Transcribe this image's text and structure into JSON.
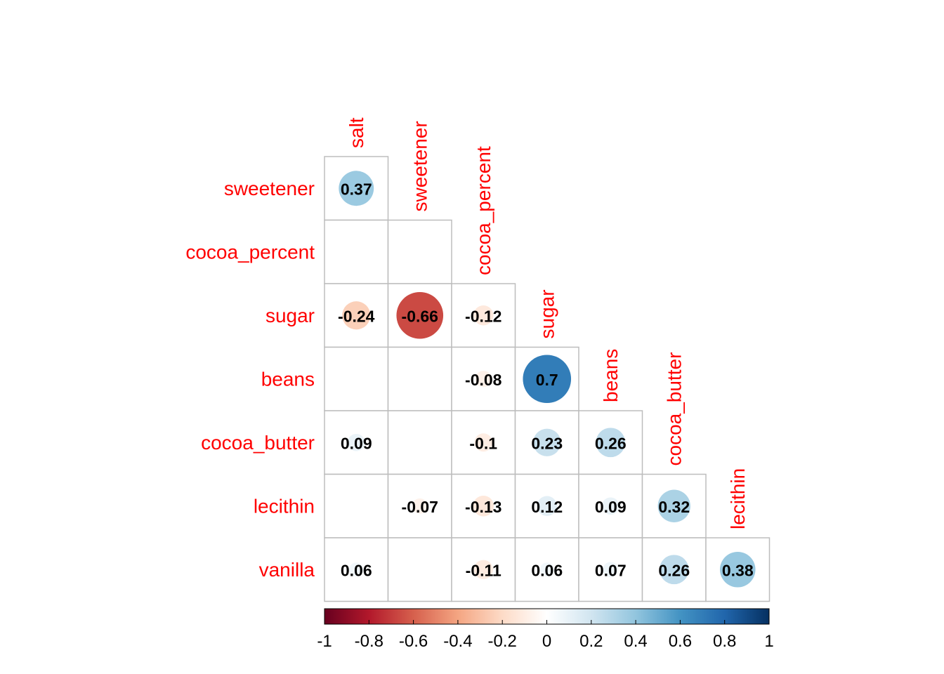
{
  "chart_data": {
    "type": "heatmap",
    "style": "correlation-plot, lower triangle, circle glyphs with coefficient labels",
    "row_labels": [
      "sweetener",
      "cocoa_percent",
      "sugar",
      "beans",
      "cocoa_butter",
      "lecithin",
      "vanilla"
    ],
    "col_labels": [
      "salt",
      "sweetener",
      "cocoa_percent",
      "sugar",
      "beans",
      "cocoa_butter",
      "lecithin"
    ],
    "label_color": "#ff0000",
    "cells": [
      {
        "row": "sweetener",
        "col": "salt",
        "value": 0.37,
        "label": "0.37"
      },
      {
        "row": "sugar",
        "col": "salt",
        "value": -0.24,
        "label": "-0.24"
      },
      {
        "row": "sugar",
        "col": "sweetener",
        "value": -0.66,
        "label": "-0.66"
      },
      {
        "row": "sugar",
        "col": "cocoa_percent",
        "value": -0.12,
        "label": "-0.12"
      },
      {
        "row": "beans",
        "col": "cocoa_percent",
        "value": -0.08,
        "label": "-0.08"
      },
      {
        "row": "beans",
        "col": "sugar",
        "value": 0.7,
        "label": "0.7"
      },
      {
        "row": "cocoa_butter",
        "col": "salt",
        "value": 0.09,
        "label": "0.09"
      },
      {
        "row": "cocoa_butter",
        "col": "cocoa_percent",
        "value": -0.1,
        "label": "-0.1"
      },
      {
        "row": "cocoa_butter",
        "col": "sugar",
        "value": 0.23,
        "label": "0.23"
      },
      {
        "row": "cocoa_butter",
        "col": "beans",
        "value": 0.26,
        "label": "0.26"
      },
      {
        "row": "lecithin",
        "col": "sweetener",
        "value": -0.07,
        "label": "-0.07"
      },
      {
        "row": "lecithin",
        "col": "cocoa_percent",
        "value": -0.13,
        "label": "-0.13"
      },
      {
        "row": "lecithin",
        "col": "sugar",
        "value": 0.12,
        "label": "0.12"
      },
      {
        "row": "lecithin",
        "col": "beans",
        "value": 0.09,
        "label": "0.09"
      },
      {
        "row": "lecithin",
        "col": "cocoa_butter",
        "value": 0.32,
        "label": "0.32"
      },
      {
        "row": "vanilla",
        "col": "salt",
        "value": 0.06,
        "label": "0.06"
      },
      {
        "row": "vanilla",
        "col": "cocoa_percent",
        "value": -0.11,
        "label": "-0.11"
      },
      {
        "row": "vanilla",
        "col": "sugar",
        "value": 0.06,
        "label": "0.06"
      },
      {
        "row": "vanilla",
        "col": "beans",
        "value": 0.07,
        "label": "0.07"
      },
      {
        "row": "vanilla",
        "col": "cocoa_butter",
        "value": 0.26,
        "label": "0.26"
      },
      {
        "row": "vanilla",
        "col": "lecithin",
        "value": 0.38,
        "label": "0.38"
      }
    ],
    "color_scale": {
      "range": [
        -1,
        1
      ],
      "ticks": [
        -1,
        -0.8,
        -0.6,
        -0.4,
        -0.2,
        0,
        0.2,
        0.4,
        0.6,
        0.8,
        1
      ],
      "tick_labels": [
        "-1",
        "-0.8",
        "-0.6",
        "-0.4",
        "-0.2",
        "0",
        "0.2",
        "0.4",
        "0.6",
        "0.8",
        "1"
      ],
      "colors": [
        "#67001F",
        "#B2182B",
        "#D6604D",
        "#F4A582",
        "#FDDBC7",
        "#FFFFFF",
        "#D1E5F0",
        "#92C5DE",
        "#4393C3",
        "#2166AC",
        "#053061"
      ],
      "legend_position": "bottom"
    }
  }
}
